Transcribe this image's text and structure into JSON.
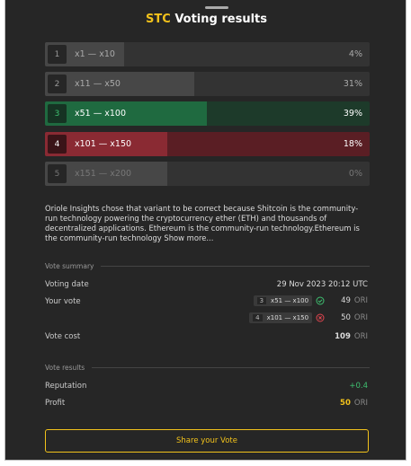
{
  "header": {
    "brand": "STC",
    "title": "Voting results"
  },
  "options": [
    {
      "number": "1",
      "label": "x1 — x10",
      "percent": "4%"
    },
    {
      "number": "2",
      "label": "x11 — x50",
      "percent": "31%"
    },
    {
      "number": "3",
      "label": "x51 — x100",
      "percent": "39%"
    },
    {
      "number": "4",
      "label": "x101 — x150",
      "percent": "18%"
    },
    {
      "number": "5",
      "label": "x151 — x200",
      "percent": "0%"
    }
  ],
  "description": {
    "text": "Oriole Insights chose that variant to be correct because Shitcoin is the community-run technology powering the cryptocurrency ether (ETH) and thousands of decentralized applications. Ethereum is the community-run technology.Ethereum is the community-run technology",
    "more": "Show more..."
  },
  "summary": {
    "heading": "Vote summary",
    "date_label": "Voting date",
    "date": "29 Nov 2023 20:12 UTC",
    "vote_label": "Your vote",
    "votes": [
      {
        "number": "3",
        "range": "x51 — x100",
        "amount": 49,
        "unit": "ORI"
      },
      {
        "number": "4",
        "range": "x101 — x150",
        "amount": 50,
        "unit": "ORI"
      }
    ],
    "cost_label": "Vote cost",
    "cost": 109,
    "cost_unit": "ORI"
  },
  "results": {
    "heading": "Vote results",
    "reputation_label": "Reputation",
    "reputation": "+0.4",
    "profit_label": "Profit",
    "profit": 50,
    "profit_unit": "ORI"
  },
  "button": "Share your Vote"
}
